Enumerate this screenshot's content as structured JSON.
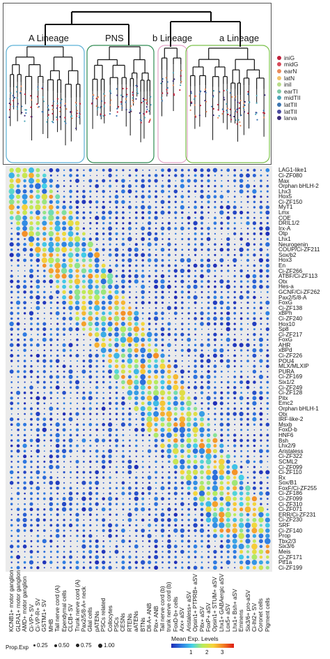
{
  "tree": {
    "lineage_labels": [
      "A Lineage",
      "PNS",
      "b Lineage",
      "a Lineage"
    ],
    "legend": [
      {
        "label": "iniG",
        "color": "#c0203a"
      },
      {
        "label": "midG",
        "color": "#d84a5a"
      },
      {
        "label": "earN",
        "color": "#ea8a5b"
      },
      {
        "label": "latN",
        "color": "#f3c26a"
      },
      {
        "label": "iniI",
        "color": "#b9dd8a"
      },
      {
        "label": "earTI",
        "color": "#7fc9a6"
      },
      {
        "label": "midTII",
        "color": "#4ba5b8"
      },
      {
        "label": "latTII",
        "color": "#3a74b0"
      },
      {
        "label": "latTII",
        "color": "#4a4aa0"
      },
      {
        "label": "larva",
        "color": "#3a2a78"
      }
    ]
  },
  "chart_data": {
    "type": "dotplot",
    "genes": [
      "LAG1-like1",
      "Ci-ZF080",
      "Max",
      "Orphan bHLH-2",
      "Lhx3",
      "Hox5",
      "Ci-ZF150",
      "MyT1",
      "Lmx",
      "COE",
      "DRIL1/2",
      "Irx-A",
      "Otp",
      "Lhx1",
      "Neurogenin",
      "COUP/Ci-ZF211",
      "Sox/b2",
      "Hox3",
      "En",
      "Ci-ZF266",
      "ATBF/Ci-ZF113",
      "Otx",
      "Hes-a",
      "GCNF/Ci-ZF262",
      "Pax2/5/8-A",
      "FoxG",
      "Ci-ZF138",
      "xBPh",
      "Ci-ZF240",
      "Hox10",
      "Sp8",
      "Ci-ZF217",
      "FoxG",
      "AHR",
      "xBPd",
      "Ci-ZF226",
      "POU4",
      "MLX/MLXIP",
      "PURA",
      "Ci-ZF169",
      "Six1/2",
      "Ci-ZF249",
      "Ci-ZF128",
      "Pitx",
      "Emc2",
      "Orphan bHLH-1",
      "Otx",
      "IRF-like-2",
      "Msxb",
      "FoxD-b",
      "HNF6",
      "Bsh",
      "Lhx2/9",
      "Aristaless",
      "Ci-ZF322",
      "SCML2",
      "Ci-ZF099",
      "Ci-ZF110",
      "Rx",
      "Sox/B1",
      "FoxF/Ci-ZF255",
      "Ci-ZF186",
      "Ci-ZF099",
      "Ci-ZF310",
      "Ci-ZF071",
      "ERR/Ci-ZF231",
      "Ci-ZF230",
      "SRF",
      "Ci-ZF140",
      "Prop",
      "Tbx2/3",
      "Six3/6",
      "Meis",
      "Ci-ZF171",
      "Ptf1a",
      "Ci-ZF199"
    ],
    "cell_types": [
      "KCNB1+ motor ganglion",
      "GLRA1+ motor ganglion",
      "AMD+ motor ganglion",
      "Ci-VP+ SV",
      "Ci-VP-R+ SV",
      "GSTM1+ SV",
      "MHB",
      "Tail nerve cord (A)",
      "Ependymal cells",
      "CLCB+ SV",
      "Trunk nerve cord (A)",
      "Pax2/5/8-A+ neck",
      "Glial cells",
      "pATENs",
      "PSCs related",
      "Collocytes",
      "PSCs",
      "CESNs",
      "RTENs",
      "aATENs",
      "BTNs",
      "Dll-A+ ANB",
      "Pitx+ ANB",
      "Tail nerve cord (b)",
      "trunk nerve cord (b)",
      "FoxD-b+ cells",
      "Arx+ aSV",
      "Aristaless+ aSV",
      "Opsin1+ PTPRB+ aSV",
      "Pitx+ aSV",
      "FoxP+ aSV",
      "Opsin1+ STUM+ aSV",
      "Lhx1+ GABAergic aSV",
      "Lox5+ aSV",
      "Lhx1+ Bsh+ aSV",
      "Eminens",
      "Six3/6+ pro-aSV",
      "Ci-lhl2+ SV",
      "Coronet cells",
      "Pigment cells"
    ],
    "dot_size": "Prop.Exp",
    "dot_color": "Mean Exp. Levels",
    "color_range": [
      0,
      3
    ]
  },
  "legend": {
    "prop_title": "Prop.Exp",
    "prop_items": [
      "0.25",
      "0.50",
      "0.75",
      "1.00"
    ],
    "mean_title": "Mean Exp. Levels",
    "mean_ticks": [
      "1",
      "2",
      "3"
    ]
  }
}
